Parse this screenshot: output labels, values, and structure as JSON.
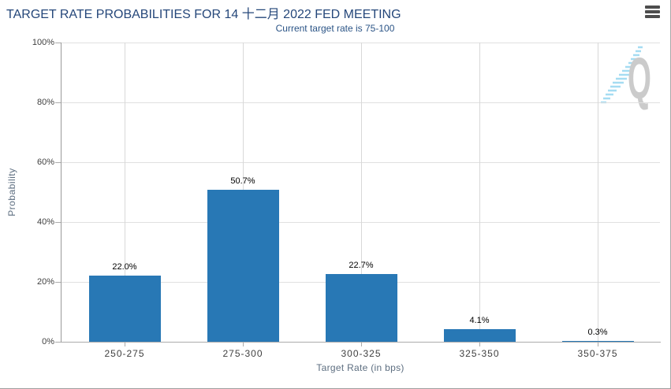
{
  "header": {
    "title": "TARGET RATE PROBABILITIES FOR 14 十二月 2022 FED MEETING",
    "subtitle": "Current target rate is 75-100",
    "menu_icon": "hamburger-menu-icon"
  },
  "watermark": {
    "letter": "Q",
    "swoosh_color": "#a5dcf2",
    "letter_color": "#cbcbcb"
  },
  "chart_data": {
    "type": "bar",
    "title": "TARGET RATE PROBABILITIES FOR 14 十二月 2022 FED MEETING",
    "subtitle": "Current target rate is 75-100",
    "categories": [
      "250-275",
      "275-300",
      "300-325",
      "325-350",
      "350-375"
    ],
    "values": [
      22.0,
      50.7,
      22.7,
      4.1,
      0.3
    ],
    "value_labels": [
      "22.0%",
      "50.7%",
      "22.7%",
      "4.1%",
      "0.3%"
    ],
    "xlabel": "Target Rate (in bps)",
    "ylabel": "Probability",
    "ylim": [
      0,
      100
    ],
    "ytick_values": [
      0,
      20,
      40,
      60,
      80,
      100
    ],
    "ytick_labels": [
      "0%",
      "20%",
      "40%",
      "60%",
      "80%",
      "100%"
    ],
    "bar_color": "#2878b5",
    "grid": true,
    "legend": null
  }
}
